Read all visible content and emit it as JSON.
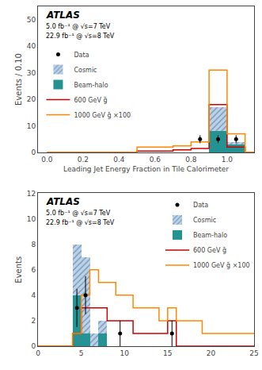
{
  "chart_data": [
    {
      "type": "histogram",
      "xlabel": "Leading Jet Energy Fraction in Tile Calorimeter",
      "ylabel": "Events / 0.10",
      "xlim": [
        -0.05,
        1.15
      ],
      "ylim": [
        0,
        55
      ],
      "xticks": [
        {
          "value": 0,
          "label": "0.0"
        },
        0.2,
        0.4,
        0.6,
        0.8,
        {
          "value": 1.0,
          "label": "1.0"
        }
      ],
      "yticks": [
        0,
        10,
        20,
        30,
        40,
        50
      ],
      "grid": false,
      "legend": "upper left",
      "stacked": true,
      "annotations": [
        "ATLAS",
        "5.0 fb⁻¹ @ √s=7 TeV",
        "22.9 fb⁻¹ @ √s=8 TeV"
      ],
      "bins": [
        0.0,
        0.1,
        0.2,
        0.3,
        0.4,
        0.5,
        0.6,
        0.7,
        0.8,
        0.9,
        1.0,
        1.1,
        1.2
      ],
      "series": [
        {
          "name": "Data",
          "type": "scatter",
          "marker": "circle",
          "color": "#000000",
          "x": [
            0.85,
            0.95,
            1.05
          ],
          "values": [
            5,
            5,
            5
          ],
          "yerr": [
            1.5,
            1.5,
            1.5
          ]
        },
        {
          "name": "Cosmic",
          "type": "bar",
          "marker": "hatch",
          "color": "#AACCEE",
          "values": [
            0,
            0,
            0,
            0,
            0,
            0,
            0,
            0,
            0,
            9,
            1,
            0
          ]
        },
        {
          "name": "Beam-halo",
          "type": "bar",
          "color": "#008080",
          "values": [
            0,
            0,
            0,
            0,
            0,
            0,
            0,
            0,
            0,
            8,
            3,
            0
          ]
        },
        {
          "name": "600 GeV ḡ",
          "type": "step",
          "color": "#CC0000",
          "values": [
            0,
            0,
            0,
            0,
            0,
            0.5,
            0.5,
            1,
            1.5,
            18,
            2,
            0
          ]
        },
        {
          "name": "1000 GeV ḡ ×100",
          "type": "step",
          "color": "#FF8800",
          "values": [
            0,
            0,
            0,
            0,
            0,
            2,
            2,
            2.5,
            4,
            31,
            7,
            0
          ]
        }
      ]
    },
    {
      "type": "histogram",
      "ylabel": "Events",
      "xlim": [
        0,
        25
      ],
      "ylim": [
        0,
        12
      ],
      "xticks": [
        0,
        5,
        10,
        15,
        20,
        25
      ],
      "yticks": [
        0,
        2,
        4,
        6,
        8,
        10,
        12
      ],
      "grid": false,
      "legend": "upper right",
      "stacked": true,
      "annotations": [
        "ATLAS",
        "5.0 fb⁻¹ @ √s=7 TeV",
        "22.9 fb⁻¹ @ √s=8 TeV"
      ],
      "bins": [
        0,
        1,
        2,
        3,
        4,
        5,
        6,
        7,
        8,
        9,
        10,
        11,
        12,
        13,
        14,
        15,
        16,
        17,
        18,
        19,
        20,
        21,
        22,
        23,
        24,
        25
      ],
      "series": [
        {
          "name": "Data",
          "type": "scatter",
          "marker": "circle",
          "color": "#000000",
          "x": [
            4.5,
            5.5,
            9.5,
            15.5
          ],
          "values": [
            3,
            4,
            1,
            1
          ],
          "yerr": [
            1.5,
            1.5,
            1.0,
            1.0
          ]
        },
        {
          "name": "Cosmic",
          "type": "bar",
          "marker": "hatch",
          "color": "#AACCEE",
          "values": [
            0,
            0,
            0,
            0,
            4,
            6,
            1,
            1,
            0,
            0,
            0,
            0,
            0,
            0,
            0,
            0,
            0,
            0,
            0,
            0,
            0,
            0,
            0,
            0,
            0
          ]
        },
        {
          "name": "Beam-halo",
          "type": "bar",
          "color": "#008080",
          "values": [
            0,
            0,
            0,
            0,
            4,
            1,
            0,
            1,
            0,
            0,
            0,
            0,
            0,
            0,
            0,
            0,
            0,
            0,
            0,
            0,
            0,
            0,
            0,
            0,
            0
          ]
        },
        {
          "name": "600 GeV ḡ",
          "type": "step",
          "color": "#CC0000",
          "values": [
            0,
            0,
            0,
            0,
            1,
            3,
            3,
            3,
            2,
            2,
            2,
            1,
            1,
            1,
            1,
            2,
            0,
            0,
            0,
            0,
            0,
            0,
            0,
            0,
            0
          ]
        },
        {
          "name": "1000 GeV ḡ ×100",
          "type": "step",
          "color": "#FF8800",
          "values": [
            0,
            0,
            0,
            0,
            1,
            4,
            6,
            5,
            5,
            4,
            4,
            3,
            3,
            3,
            2,
            3,
            2,
            2,
            2,
            1,
            1,
            1,
            1,
            1,
            1
          ]
        }
      ]
    }
  ]
}
